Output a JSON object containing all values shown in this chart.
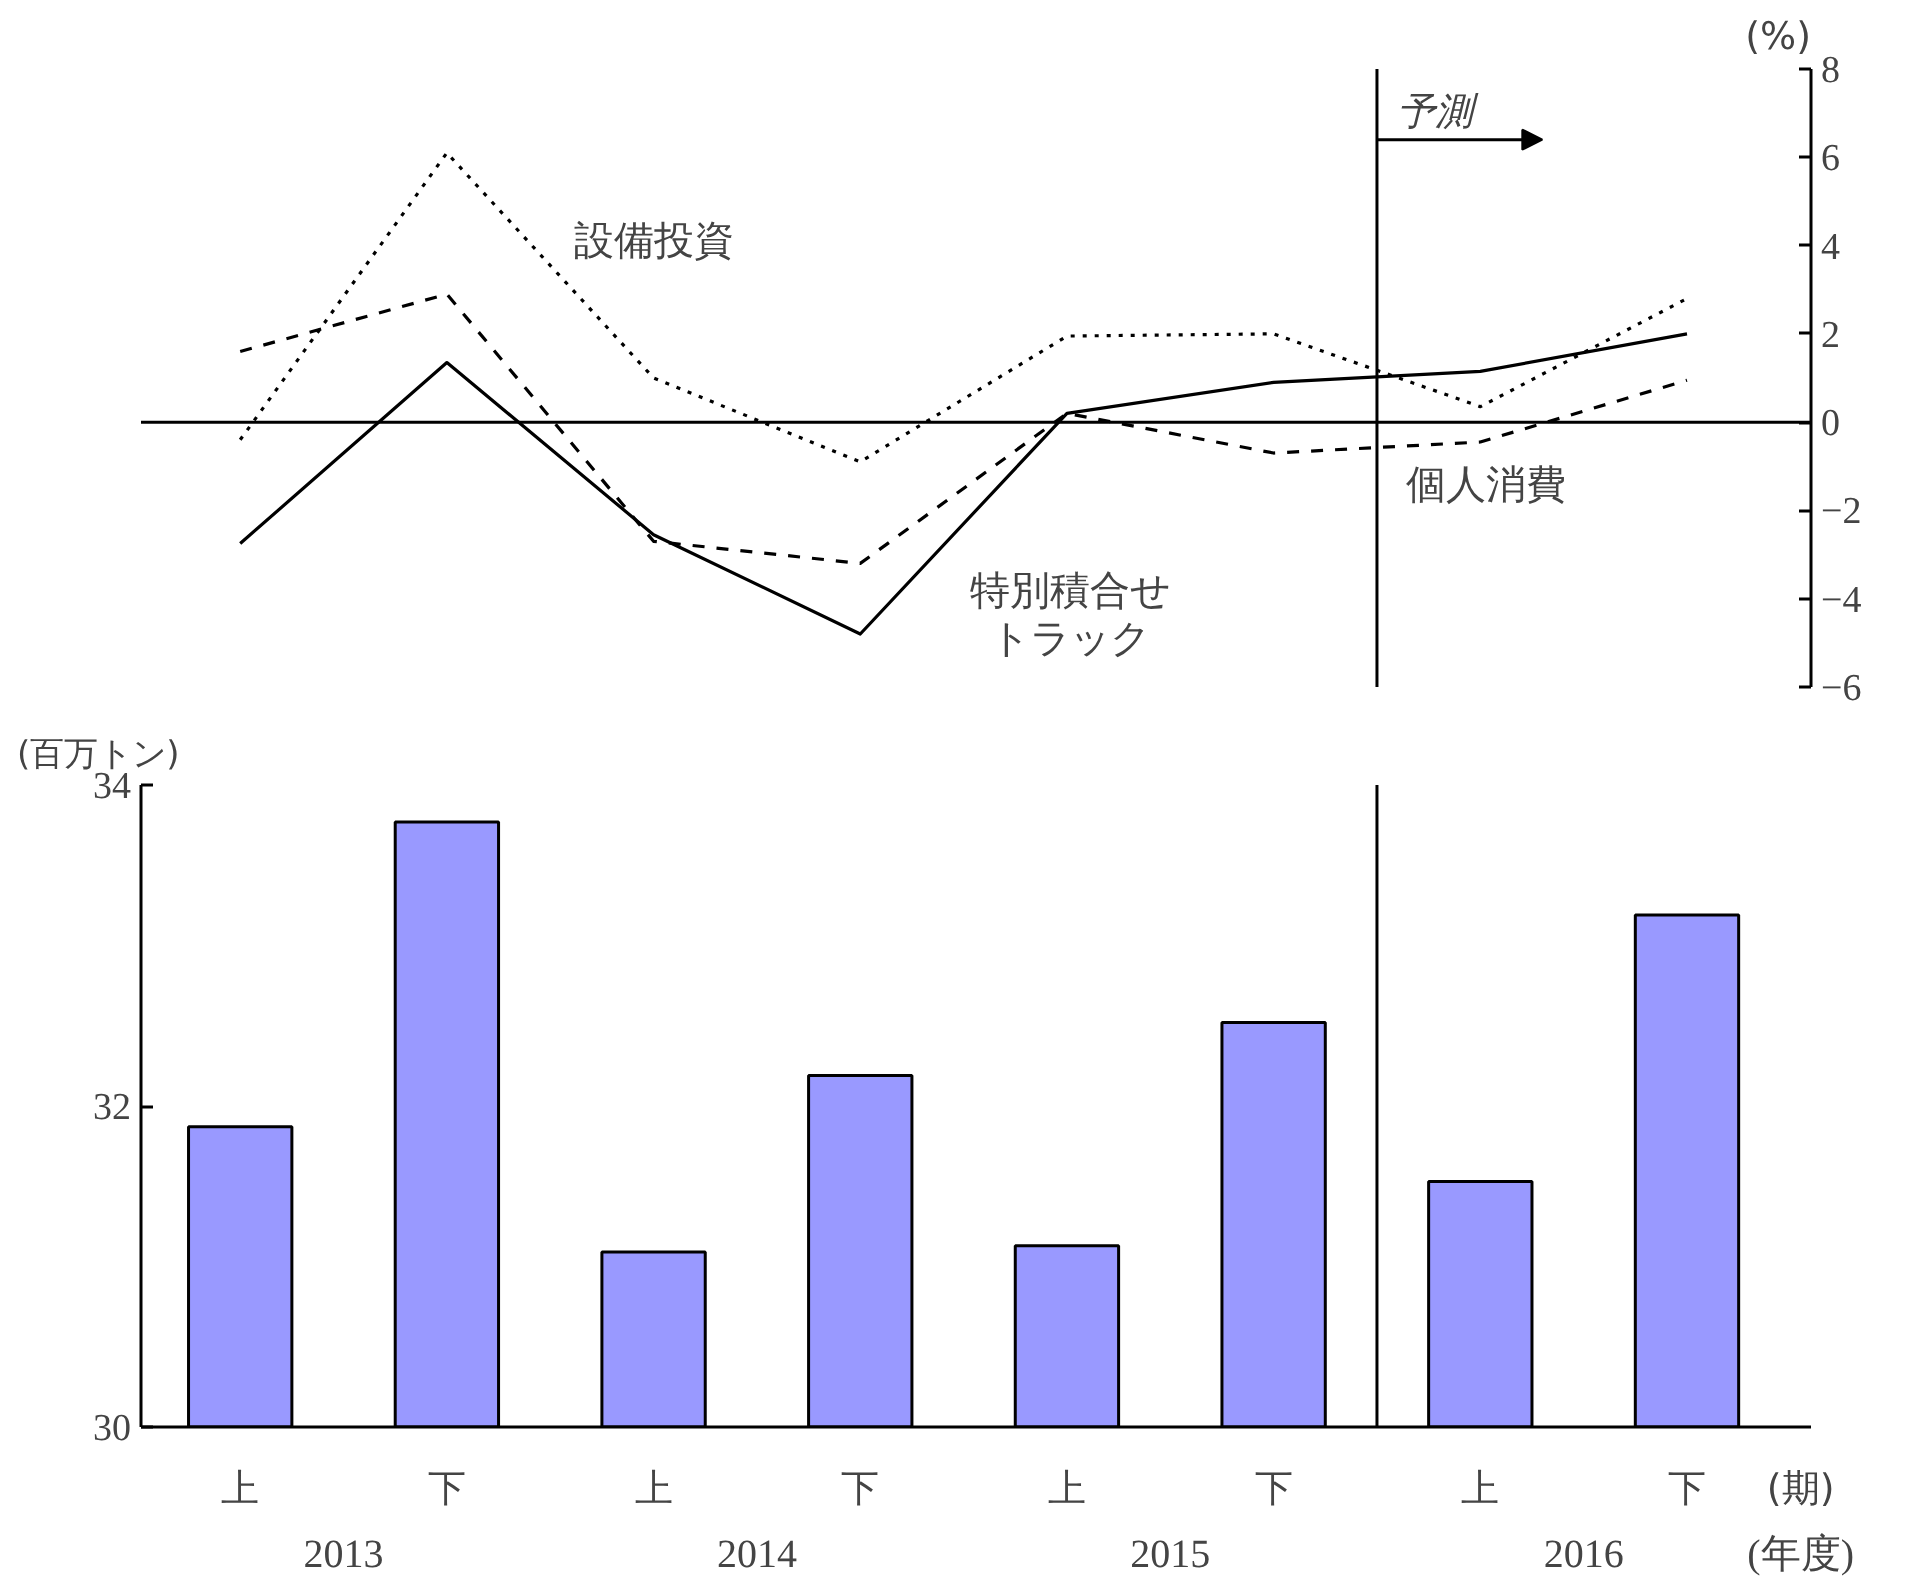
{
  "chart_data": [
    {
      "type": "line",
      "categories": [
        null,
        null,
        null,
        null,
        null,
        null,
        null,
        null
      ],
      "ylabel": "(%)",
      "ylim": [
        -6,
        8
      ],
      "yticks": [
        -6,
        -4,
        -2,
        0,
        2,
        4,
        6,
        8
      ],
      "grid": false,
      "tick_labels": "y",
      "series": [
        {
          "name": "設備投資",
          "color": "#000000",
          "line_style": "dotted",
          "values": [
            -0.4,
            6.1,
            1.0,
            -0.9,
            1.95,
            2.0,
            0.35,
            2.8
          ]
        },
        {
          "name": "個人消費",
          "color": "#000000",
          "line_style": "dashed",
          "values": [
            1.6,
            2.9,
            -2.7,
            -3.2,
            0.2,
            -0.7,
            -0.45,
            0.95
          ]
        },
        {
          "name": "特別積合せトラック",
          "color": "#000000",
          "line_style": "solid",
          "values": [
            -2.75,
            1.35,
            -2.55,
            -4.8,
            0.2,
            0.9,
            1.15,
            2.0
          ]
        }
      ],
      "annotations": [
        "予測"
      ],
      "ref_lines": [
        {
          "axis": "y",
          "value": 0,
          "color": "#000000"
        }
      ]
    },
    {
      "type": "bar",
      "categories": [
        "上",
        "下",
        "上",
        "下",
        "上",
        "下",
        "上",
        "下"
      ],
      "ylabel": "(百万トン)",
      "xlabel": "(期)",
      "ylim": [
        30,
        34
      ],
      "yticks": [
        30,
        32,
        34
      ],
      "grid": false,
      "series": [
        {
          "color": "#9999ff",
          "values": [
            31.87,
            33.77,
            31.09,
            32.19,
            31.13,
            32.52,
            31.53,
            33.19
          ]
        }
      ],
      "annotations": [
        "2013",
        "2014",
        "2015",
        "2016",
        "(年度)"
      ]
    }
  ]
}
